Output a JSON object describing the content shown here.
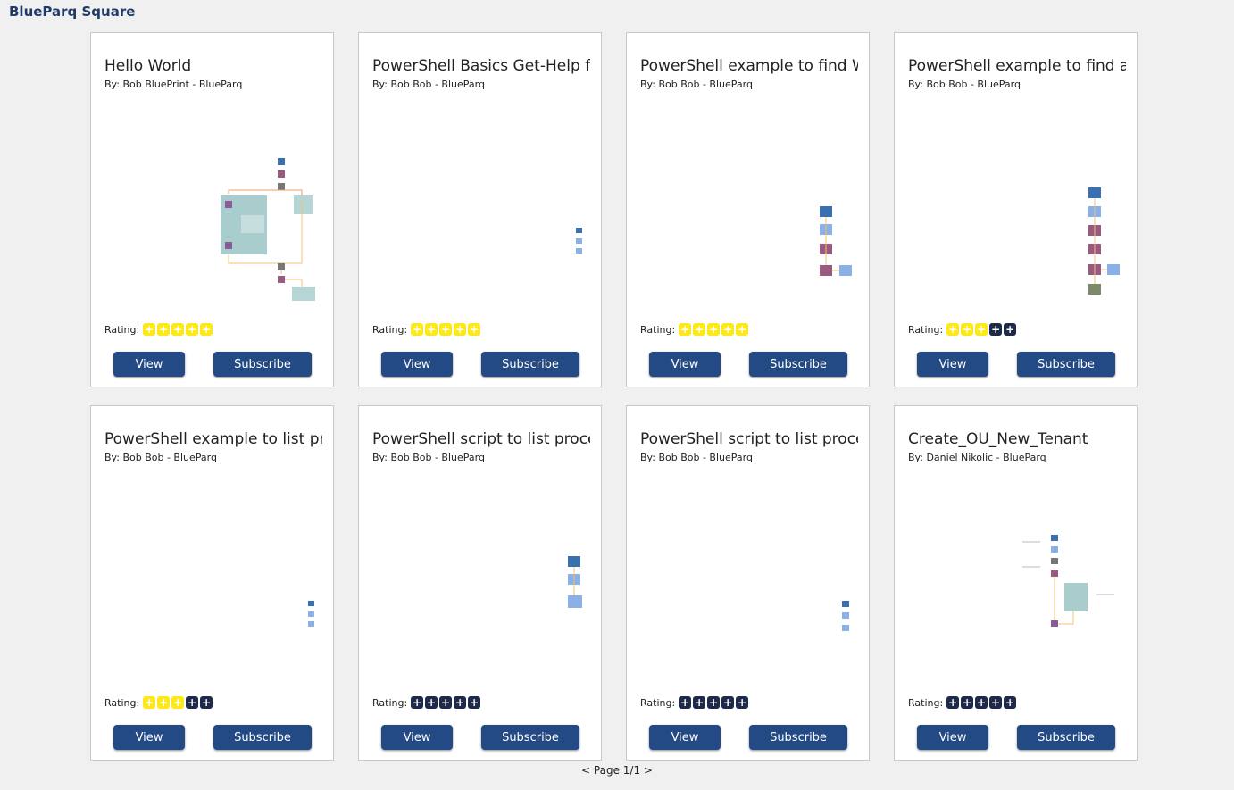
{
  "app": {
    "title": "BlueParq Square"
  },
  "labels": {
    "rating": "Rating:",
    "view": "View",
    "subscribe": "Subscribe",
    "prev": "<",
    "next": ">",
    "page": "Page 1/1"
  },
  "colors": {
    "accent": "#234a85",
    "star_on": "#ffe81a",
    "star_off": "#1e2a4a"
  },
  "cards": [
    {
      "title": "Hello World",
      "author": "By: Bob BluePrint - BlueParq",
      "rating": 5
    },
    {
      "title": "PowerShell Basics Get-Help for",
      "author": "By: Bob Bob - BlueParq",
      "rating": 5
    },
    {
      "title": "PowerShell example to find Wi",
      "author": "By: Bob Bob - BlueParq",
      "rating": 5
    },
    {
      "title": "PowerShell example to find and",
      "author": "By: Bob Bob - BlueParq",
      "rating": 3
    },
    {
      "title": "PowerShell example to list proc",
      "author": "By: Bob Bob - BlueParq",
      "rating": 3
    },
    {
      "title": "PowerShell script to list proces",
      "author": "By: Bob Bob - BlueParq",
      "rating": 0
    },
    {
      "title": "PowerShell script to list proces",
      "author": "By: Bob Bob - BlueParq",
      "rating": 0
    },
    {
      "title": "Create_OU_New_Tenant",
      "author": "By: Daniel Nikolic - BlueParq",
      "rating": 0
    }
  ]
}
